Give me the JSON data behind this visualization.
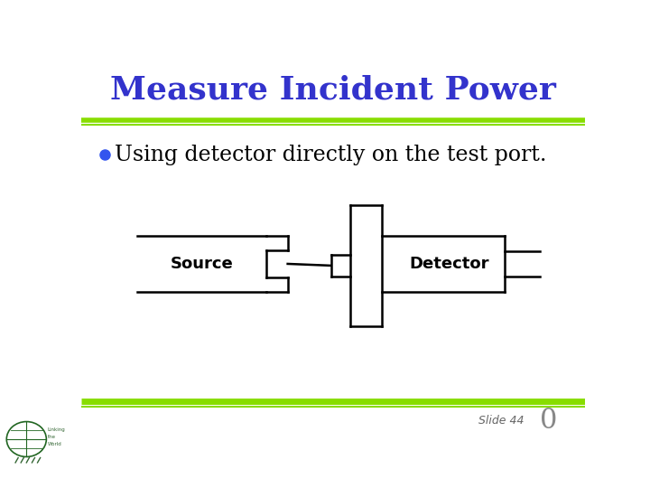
{
  "title": "Measure Incident Power",
  "title_color": "#3333CC",
  "title_fontsize": 26,
  "bullet_text": "Using detector directly on the test port.",
  "bullet_fontsize": 17,
  "bullet_color": "#000000",
  "bullet_dot_color": "#3355EE",
  "line_color_green": "#88DD00",
  "slide_number_text": "Slide 44",
  "slide_number_color": "#666666",
  "zero_color": "#888888",
  "background_color": "#FFFFFF",
  "source_label": "Source",
  "detector_label": "Detector"
}
